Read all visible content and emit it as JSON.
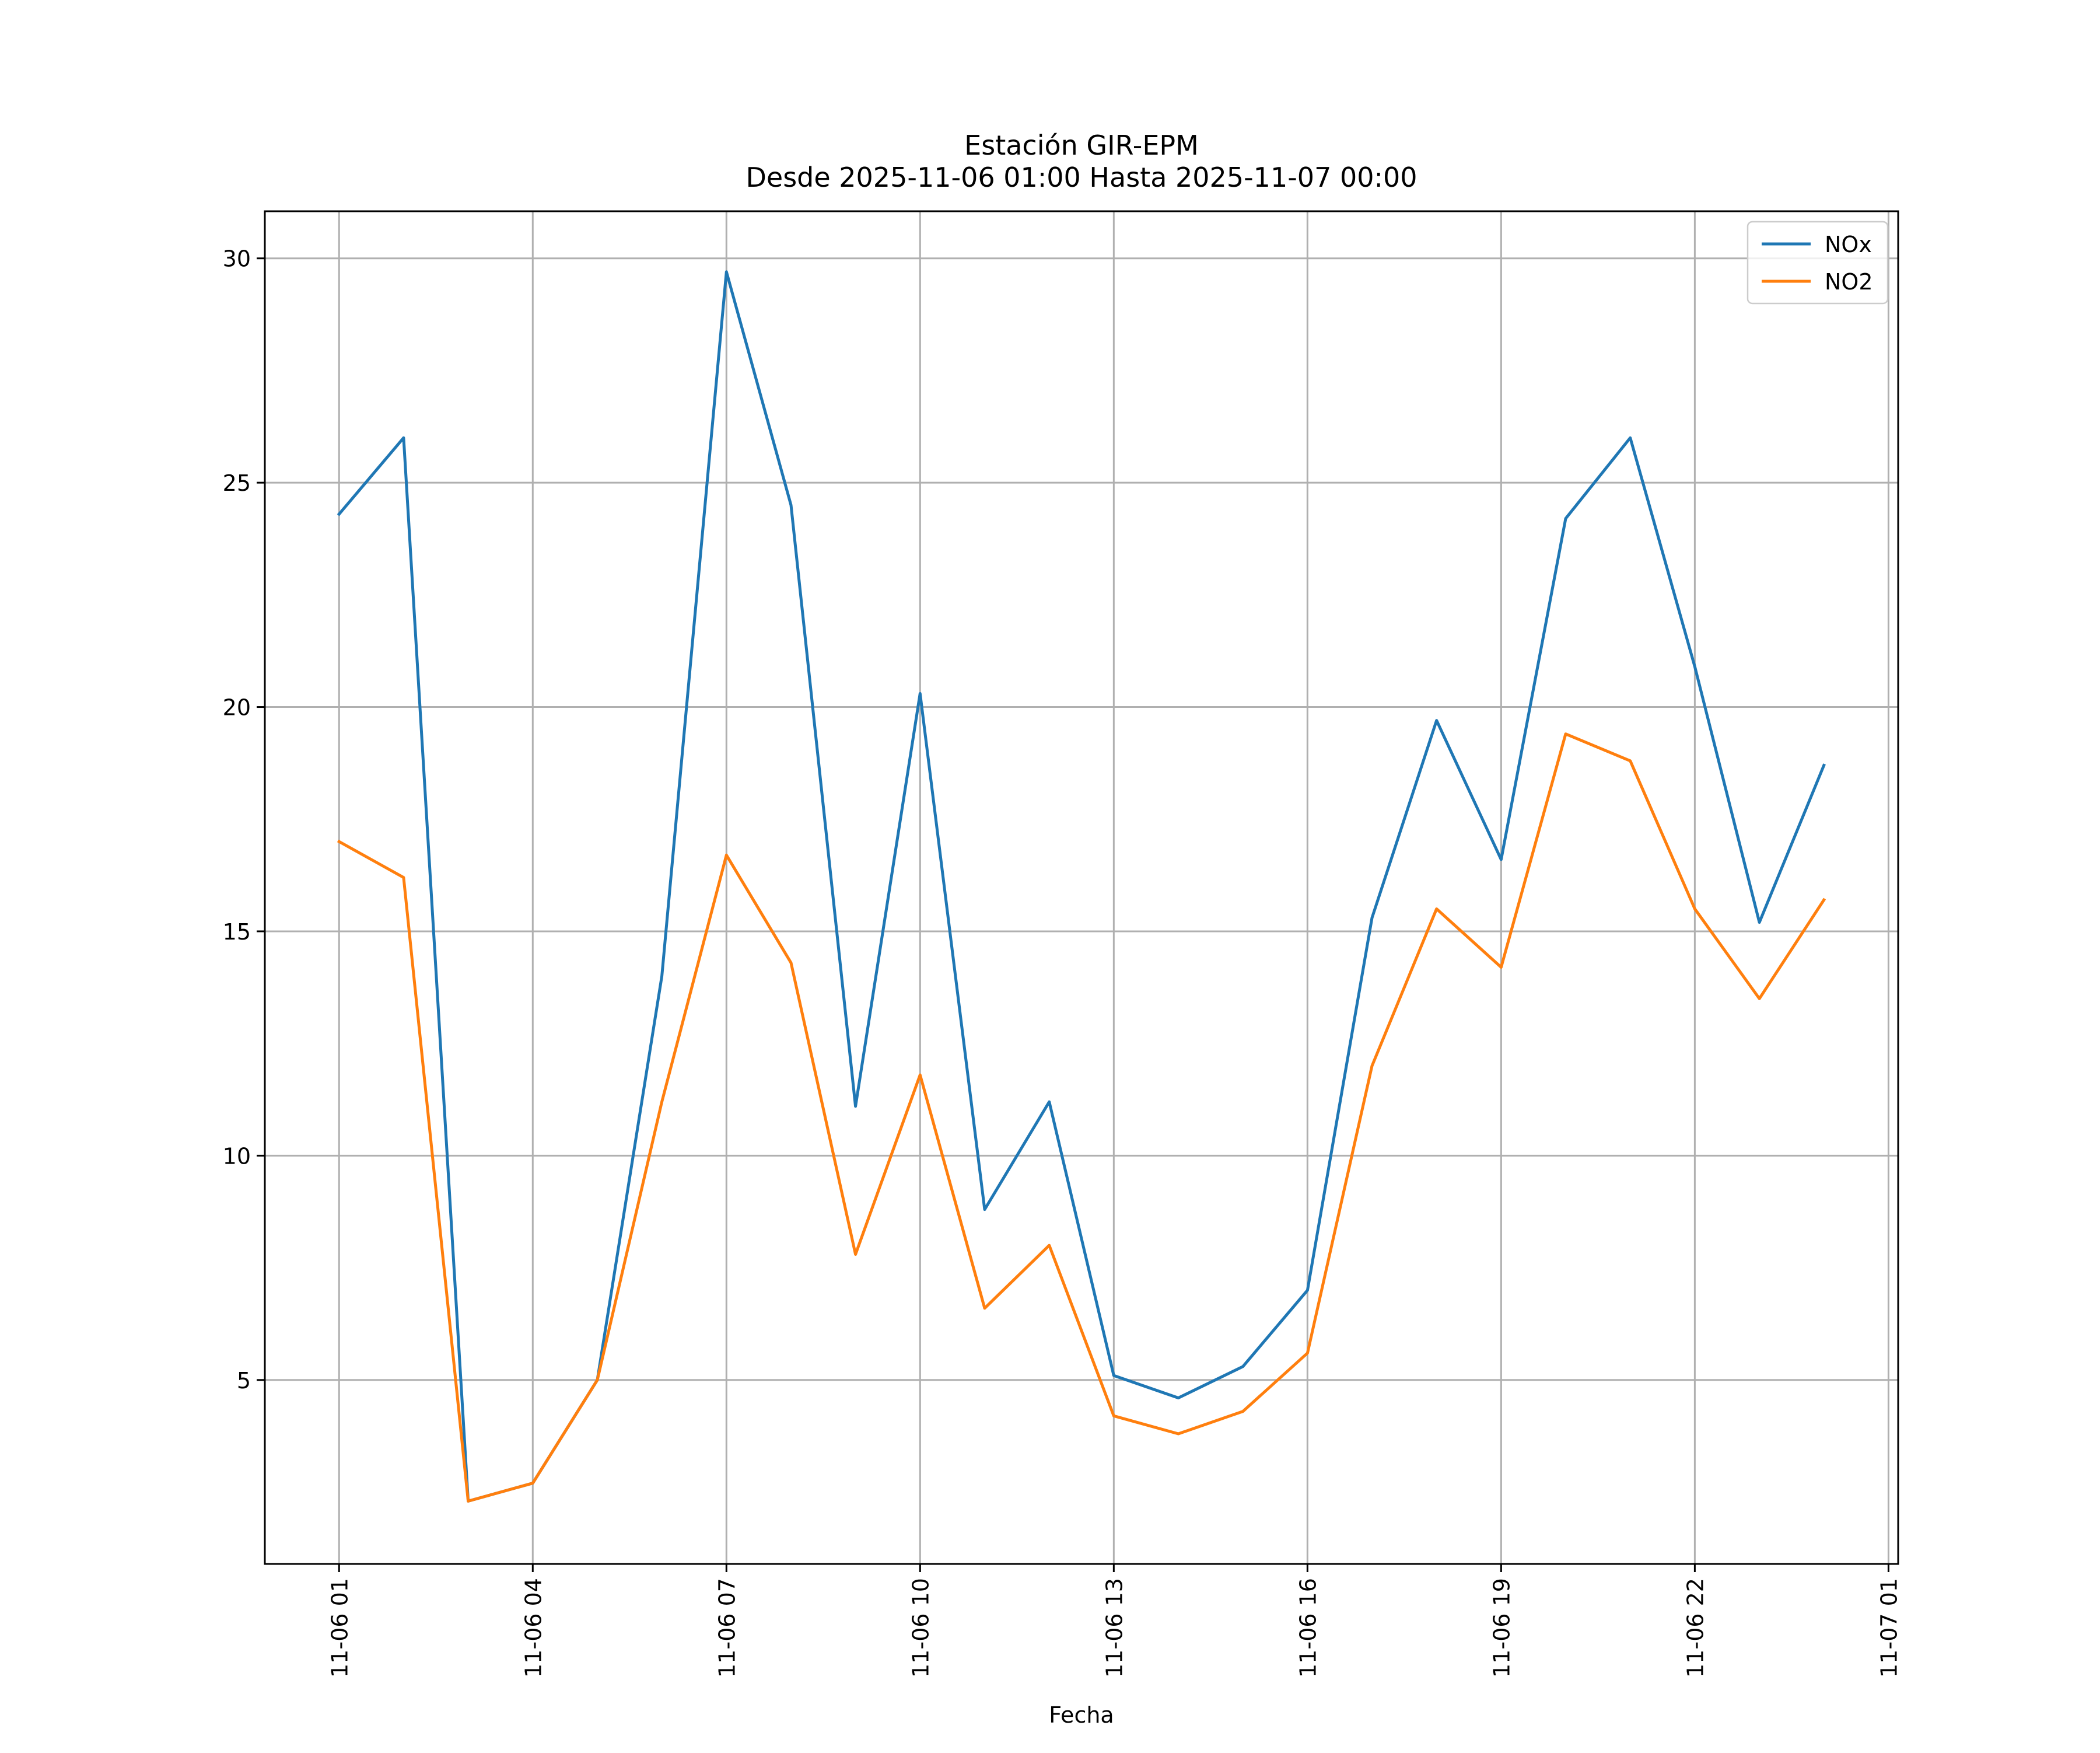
{
  "chart_data": {
    "type": "line",
    "title_line1": "Estación GIR-EPM",
    "title_line2": "Desde 2025-11-06 01:00 Hasta 2025-11-07 00:00",
    "xlabel": "Fecha",
    "ylabel": "",
    "x_hours": [
      1,
      2,
      3,
      4,
      5,
      6,
      7,
      8,
      9,
      10,
      11,
      12,
      13,
      14,
      15,
      16,
      17,
      18,
      19,
      20,
      21,
      22,
      23,
      24
    ],
    "xlim_hours": [
      -0.15,
      25.15
    ],
    "x_ticks": [
      {
        "hour": 1,
        "label": "11-06 01"
      },
      {
        "hour": 4,
        "label": "11-06 04"
      },
      {
        "hour": 7,
        "label": "11-06 07"
      },
      {
        "hour": 10,
        "label": "11-06 10"
      },
      {
        "hour": 13,
        "label": "11-06 13"
      },
      {
        "hour": 16,
        "label": "11-06 16"
      },
      {
        "hour": 19,
        "label": "11-06 19"
      },
      {
        "hour": 22,
        "label": "11-06 22"
      },
      {
        "hour": 25,
        "label": "11-07 01"
      }
    ],
    "ylim": [
      0.9,
      31.05
    ],
    "y_ticks": [
      {
        "value": 5,
        "label": "5"
      },
      {
        "value": 10,
        "label": "10"
      },
      {
        "value": 15,
        "label": "15"
      },
      {
        "value": 20,
        "label": "20"
      },
      {
        "value": 25,
        "label": "25"
      },
      {
        "value": 30,
        "label": "30"
      }
    ],
    "grid": true,
    "legend_position": "top-right",
    "series": [
      {
        "name": "NOx",
        "color": "#1f77b4",
        "values": [
          24.3,
          26.0,
          2.3,
          2.7,
          5.0,
          14.0,
          29.7,
          24.5,
          11.1,
          20.3,
          8.8,
          11.2,
          5.1,
          4.6,
          5.3,
          7.0,
          15.3,
          19.7,
          16.6,
          24.2,
          26.0,
          20.9,
          15.2,
          18.7
        ]
      },
      {
        "name": "NO2",
        "color": "#ff7f0e",
        "values": [
          17.0,
          16.2,
          2.3,
          2.7,
          5.0,
          11.2,
          16.7,
          14.3,
          7.8,
          11.8,
          6.6,
          8.0,
          4.2,
          3.8,
          4.3,
          5.6,
          12.0,
          15.5,
          14.2,
          19.4,
          18.8,
          15.5,
          13.5,
          15.7
        ]
      }
    ]
  }
}
